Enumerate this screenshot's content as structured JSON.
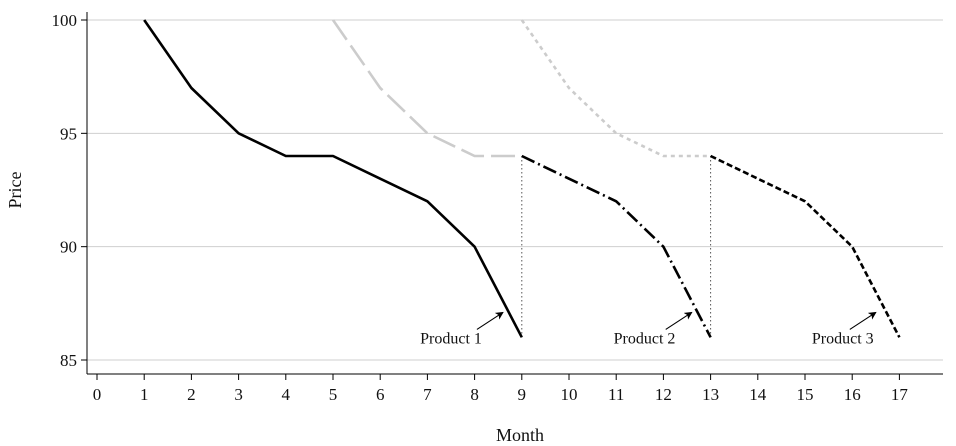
{
  "chart_data": {
    "type": "line",
    "xlabel": "Month",
    "ylabel": "Price",
    "xlim": [
      0,
      18
    ],
    "ylim": [
      85,
      100
    ],
    "x_ticks": [
      0,
      1,
      2,
      3,
      4,
      5,
      6,
      7,
      8,
      9,
      10,
      11,
      12,
      13,
      14,
      15,
      16,
      17
    ],
    "y_ticks": [
      85,
      90,
      95,
      100
    ],
    "grid": "horizontal",
    "legend": "none",
    "series": [
      {
        "color": "#000000",
        "style": "solid",
        "x": [
          1,
          2,
          3,
          4,
          5,
          6,
          7,
          8,
          9
        ],
        "y": [
          100,
          97,
          95,
          94,
          94,
          93,
          92,
          90,
          86
        ]
      },
      {
        "color": "#cccccc",
        "style": "long-dash",
        "x": [
          5,
          6,
          7,
          8,
          9
        ],
        "y": [
          100,
          97,
          95,
          94,
          94
        ]
      },
      {
        "color": "#000000",
        "style": "dash-dot",
        "x": [
          9,
          10,
          11,
          12,
          13
        ],
        "y": [
          94,
          93,
          92,
          90,
          86
        ]
      },
      {
        "color": "#cccccc",
        "style": "dotted",
        "x": [
          9,
          10,
          11,
          12,
          13
        ],
        "y": [
          100,
          97,
          95,
          94,
          94
        ]
      },
      {
        "color": "#000000",
        "style": "short-dash",
        "x": [
          13,
          14,
          15,
          16,
          17
        ],
        "y": [
          94,
          93,
          92,
          90,
          86
        ]
      }
    ],
    "transitions": [
      {
        "x": 9,
        "y_from": 94,
        "y_to": 86
      },
      {
        "x": 13,
        "y_from": 94,
        "y_to": 86
      }
    ],
    "annotations": [
      {
        "text": "Product 1",
        "text_x": 7.5,
        "text_y": 86,
        "arrow_to": [
          8.6,
          87.1
        ]
      },
      {
        "text": "Product 2",
        "text_x": 11.6,
        "text_y": 86,
        "arrow_to": [
          12.6,
          87.1
        ]
      },
      {
        "text": "Product 3",
        "text_x": 15.8,
        "text_y": 86,
        "arrow_to": [
          16.5,
          87.1
        ]
      }
    ]
  }
}
